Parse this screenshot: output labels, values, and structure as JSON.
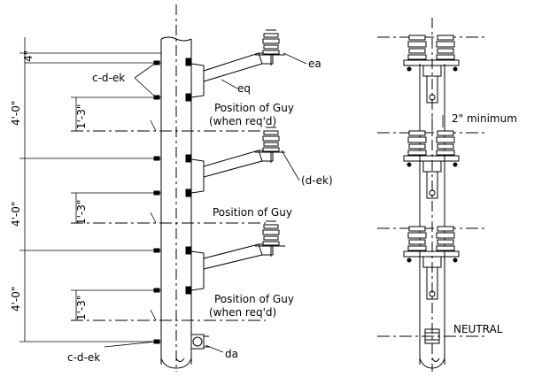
{
  "labels": {
    "dim_4in": "4\"",
    "dim_4ft_1": "4'-0\"",
    "dim_4ft_2": "4'-0\"",
    "dim_4ft_3": "4'-0\"",
    "dim_13_1": "1'-3\"",
    "dim_13_2": "1'-3\"",
    "dim_13_3": "1'-3\"",
    "cdek_top": "c-d-ek",
    "cdek_bottom": "c-d-ek",
    "ea": "ea",
    "eq": "eq",
    "dek": "(d-ek)",
    "da": "da",
    "guy1_line1": "Position of Guy",
    "guy1_line2": "(when req'd)",
    "guy2": "Position of Guy",
    "guy3_line1": "Position of Guy",
    "guy3_line2": "(when req'd)",
    "min_2in": "2\" minimum",
    "neutral": "NEUTRAL"
  }
}
